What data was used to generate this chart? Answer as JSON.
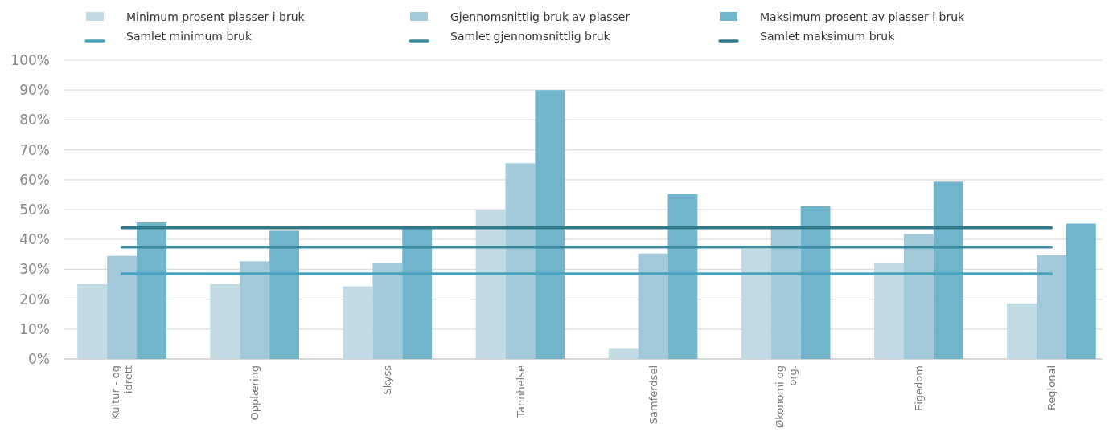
{
  "chart_data": {
    "type": "bar",
    "categories": [
      "Kultur - og idrett",
      "Opplæring",
      "Skyss",
      "Tannhelse",
      "Samferdsel",
      "Økonomi og org.",
      "Eigedom",
      "Regional"
    ],
    "series": [
      {
        "name": "Minimum prosent plasser i bruk",
        "color": "#c2dae3",
        "values": [
          25,
          25,
          24.3,
          50,
          3.4,
          36.8,
          32,
          18.6
        ]
      },
      {
        "name": "Gjennomsnittlig bruk av plasser",
        "color": "#a2c9d9",
        "values": [
          34.5,
          32.7,
          32.1,
          65.5,
          35.3,
          44.6,
          41.8,
          34.7
        ]
      },
      {
        "name": "Maksimum prosent av plasser i bruk",
        "color": "#71b5cd",
        "values": [
          45.7,
          42.9,
          43.8,
          90,
          55.2,
          51.1,
          59.3,
          45.3
        ]
      },
      {
        "name": "Samlet minimum bruk",
        "type": "line",
        "color": "#4aa3bd",
        "values": [
          28.5,
          28.5,
          28.5,
          28.5,
          28.5,
          28.5,
          28.5,
          28.5
        ]
      },
      {
        "name": "Samlet gjennomsnittlig bruk",
        "type": "line",
        "color": "#3a8ba0",
        "values": [
          37.4,
          37.4,
          37.4,
          37.4,
          37.4,
          37.4,
          37.4,
          37.4
        ]
      },
      {
        "name": "Samlet maksimum bruk",
        "type": "line",
        "color": "#2f7a8a",
        "values": [
          43.9,
          43.9,
          43.9,
          43.9,
          43.9,
          43.9,
          43.9,
          43.9
        ]
      }
    ],
    "ylim": [
      0,
      100
    ],
    "yticks": [
      {
        "value": 0,
        "label": "0%"
      },
      {
        "value": 10,
        "label": "10%"
      },
      {
        "value": 20,
        "label": "20%"
      },
      {
        "value": 30,
        "label": "30%"
      },
      {
        "value": 40,
        "label": "40%"
      },
      {
        "value": 50,
        "label": "50%"
      },
      {
        "value": 60,
        "label": "60%"
      },
      {
        "value": 70,
        "label": "70%"
      },
      {
        "value": 80,
        "label": "80%"
      },
      {
        "value": 90,
        "label": "90%"
      },
      {
        "value": 100,
        "label": "100%"
      }
    ],
    "grid": "y",
    "legend": "top",
    "marker": "none",
    "line_style": "solid"
  }
}
